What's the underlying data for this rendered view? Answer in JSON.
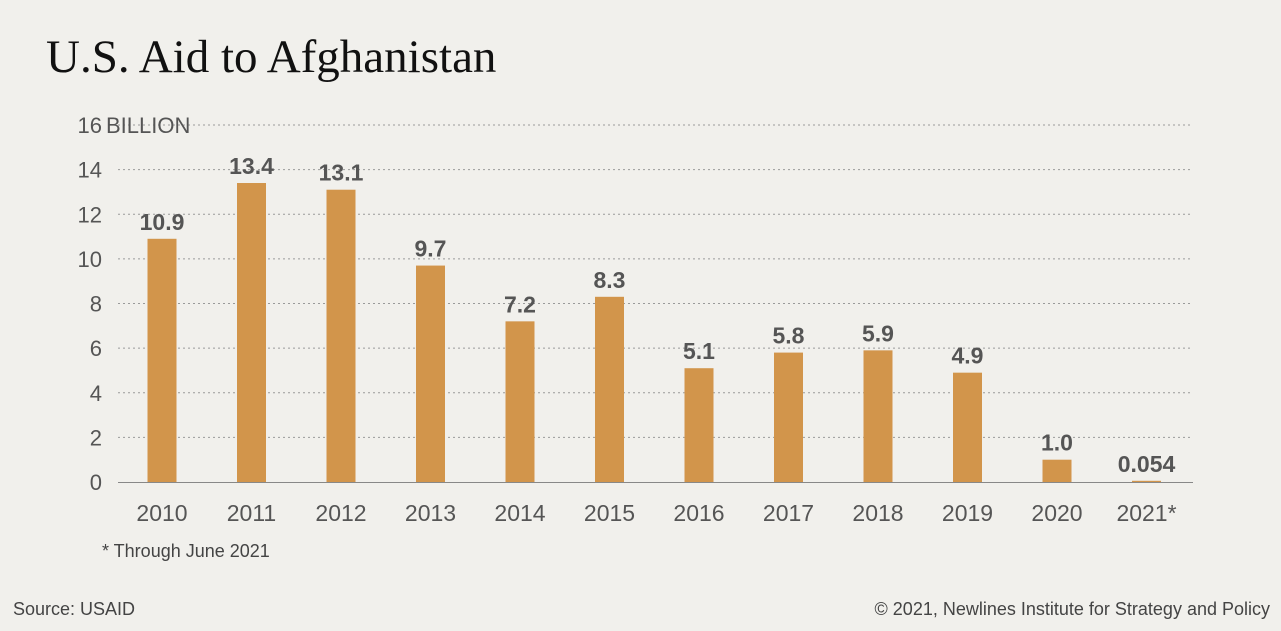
{
  "chart_data": {
    "type": "bar",
    "title": "U.S. Aid to Afghanistan",
    "ylabel": "BILLION",
    "categories": [
      "2010",
      "2011",
      "2012",
      "2013",
      "2014",
      "2015",
      "2016",
      "2017",
      "2018",
      "2019",
      "2020",
      "2021*"
    ],
    "values": [
      10.9,
      13.4,
      13.1,
      9.7,
      7.2,
      8.3,
      5.1,
      5.8,
      5.9,
      4.9,
      1.0,
      0.054
    ],
    "value_labels": [
      "10.9",
      "13.4",
      "13.1",
      "9.7",
      "7.2",
      "8.3",
      "5.1",
      "5.8",
      "5.9",
      "4.9",
      "1.0",
      "0.054"
    ],
    "ylim": [
      0,
      16
    ],
    "yticks": [
      0,
      2,
      4,
      6,
      8,
      10,
      12,
      14,
      16
    ],
    "grid": "horizontal dotted",
    "bar_color": "#d2954b"
  },
  "footnote": "* Through June 2021",
  "source": "Source: USAID",
  "copyright": "© 2021, Newlines Institute for Strategy and Policy"
}
